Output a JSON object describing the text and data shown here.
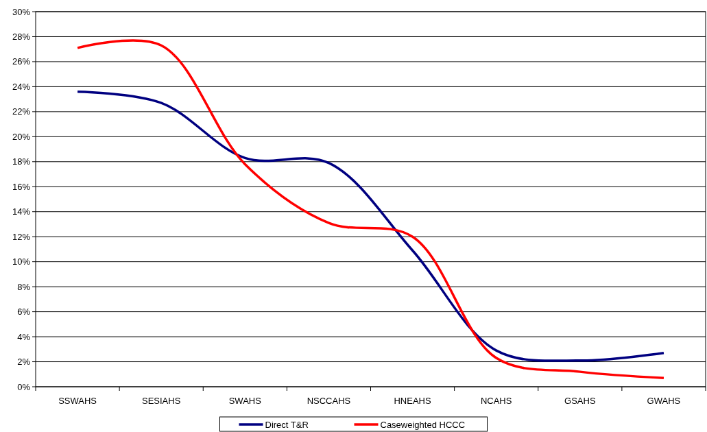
{
  "chart_data": {
    "type": "line",
    "categories": [
      "SSWAHS",
      "SESIAHS",
      "SWAHS",
      "NSCCAHS",
      "HNEAHS",
      "NCAHS",
      "GSAHS",
      "GWAHS"
    ],
    "series": [
      {
        "name": "Direct T&R",
        "color": "#000080",
        "values": [
          23.6,
          22.7,
          18.3,
          17.9,
          10.9,
          2.9,
          2.1,
          2.7
        ]
      },
      {
        "name": "Caseweighted HCCC",
        "color": "#ff0000",
        "values": [
          27.1,
          27.3,
          17.8,
          13.1,
          12.0,
          2.3,
          1.2,
          0.7
        ]
      }
    ],
    "ylim": [
      0,
      30
    ],
    "yticks": [
      {
        "value": 0,
        "label": "0%"
      },
      {
        "value": 2,
        "label": "2%"
      },
      {
        "value": 4,
        "label": "4%"
      },
      {
        "value": 6,
        "label": "6%"
      },
      {
        "value": 8,
        "label": "8%"
      },
      {
        "value": 10,
        "label": "10%"
      },
      {
        "value": 12,
        "label": "12%"
      },
      {
        "value": 14,
        "label": "14%"
      },
      {
        "value": 16,
        "label": "16%"
      },
      {
        "value": 18,
        "label": "18%"
      },
      {
        "value": 20,
        "label": "20%"
      },
      {
        "value": 22,
        "label": "22%"
      },
      {
        "value": 24,
        "label": "24%"
      },
      {
        "value": 26,
        "label": "26%"
      },
      {
        "value": 28,
        "label": "28%"
      },
      {
        "value": 30,
        "label": "30%"
      }
    ],
    "grid": "y",
    "legend": "bottom",
    "marker": "none",
    "line_style": "solid"
  }
}
